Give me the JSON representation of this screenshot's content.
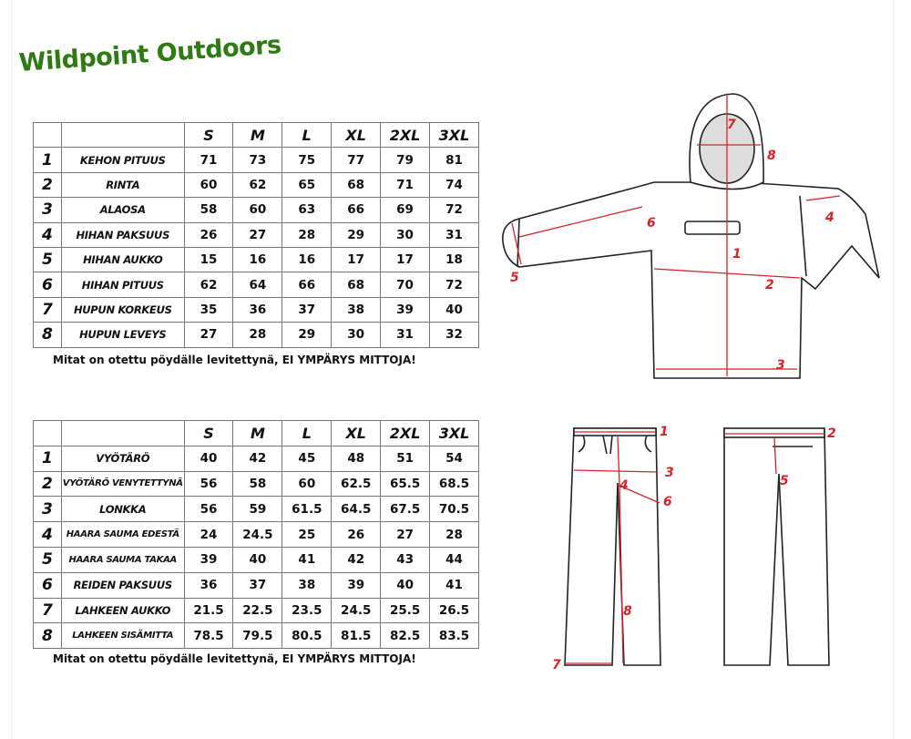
{
  "brand": "Wildpoint Outdoors",
  "sizes": [
    "S",
    "M",
    "L",
    "XL",
    "2XL",
    "3XL"
  ],
  "jacket_table": {
    "rows": [
      {
        "n": "1",
        "label": "KEHON PITUUS",
        "values": [
          "71",
          "73",
          "75",
          "77",
          "79",
          "81"
        ]
      },
      {
        "n": "2",
        "label": "RINTA",
        "values": [
          "60",
          "62",
          "65",
          "68",
          "71",
          "74"
        ]
      },
      {
        "n": "3",
        "label": "ALAOSA",
        "values": [
          "58",
          "60",
          "63",
          "66",
          "69",
          "72"
        ]
      },
      {
        "n": "4",
        "label": "HIHAN PAKSUUS",
        "values": [
          "26",
          "27",
          "28",
          "29",
          "30",
          "31"
        ]
      },
      {
        "n": "5",
        "label": "HIHAN AUKKO",
        "values": [
          "15",
          "16",
          "16",
          "17",
          "17",
          "18"
        ]
      },
      {
        "n": "6",
        "label": "HIHAN PITUUS",
        "values": [
          "62",
          "64",
          "66",
          "68",
          "70",
          "72"
        ]
      },
      {
        "n": "7",
        "label": "HUPUN KORKEUS",
        "values": [
          "35",
          "36",
          "37",
          "38",
          "39",
          "40"
        ]
      },
      {
        "n": "8",
        "label": "HUPUN LEVEYS",
        "values": [
          "27",
          "28",
          "29",
          "30",
          "31",
          "32"
        ]
      }
    ],
    "note": "Mitat on otettu pöydälle levitettynä, EI YMPÄRYS MITTOJA!"
  },
  "pants_table": {
    "rows": [
      {
        "n": "1",
        "label": "VYÖTÄRÖ",
        "values": [
          "40",
          "42",
          "45",
          "48",
          "51",
          "54"
        ]
      },
      {
        "n": "2",
        "label": "VYÖTÄRÖ VENYTETTYNÄ",
        "values": [
          "56",
          "58",
          "60",
          "62.5",
          "65.5",
          "68.5"
        ]
      },
      {
        "n": "3",
        "label": "LONKKA",
        "values": [
          "56",
          "59",
          "61.5",
          "64.5",
          "67.5",
          "70.5"
        ]
      },
      {
        "n": "4",
        "label": "HAARA SAUMA EDESTÄ",
        "values": [
          "24",
          "24.5",
          "25",
          "26",
          "27",
          "28"
        ]
      },
      {
        "n": "5",
        "label": "HAARA SAUMA TAKAA",
        "values": [
          "39",
          "40",
          "41",
          "42",
          "43",
          "44"
        ]
      },
      {
        "n": "6",
        "label": "REIDEN PAKSUUS",
        "values": [
          "36",
          "37",
          "38",
          "39",
          "40",
          "41"
        ]
      },
      {
        "n": "7",
        "label": "LAHKEEN AUKKO",
        "values": [
          "21.5",
          "22.5",
          "23.5",
          "24.5",
          "25.5",
          "26.5"
        ]
      },
      {
        "n": "8",
        "label": "LAHKEEN SISÄMITTA",
        "values": [
          "78.5",
          "79.5",
          "80.5",
          "81.5",
          "82.5",
          "83.5"
        ]
      }
    ],
    "note": "Mitat on otettu pöydälle levitettynä, EI YMPÄRYS MITTOJA!"
  },
  "colors": {
    "brand": "#2f7a12",
    "measure": "#d8232a"
  }
}
